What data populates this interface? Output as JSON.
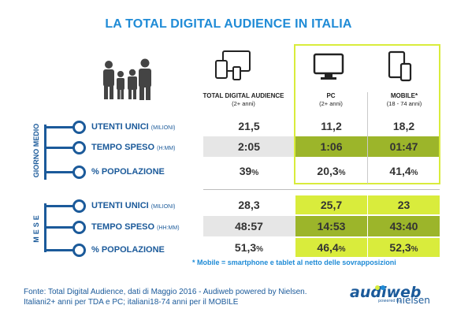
{
  "title": "LA TOTAL DIGITAL AUDIENCE IN ITALIA",
  "columns": [
    {
      "title": "TOTAL DIGITAL AUDIENCE",
      "sub": "(2+ anni)"
    },
    {
      "title": "PC",
      "sub": "(2+ anni)"
    },
    {
      "title": "MOBILE*",
      "sub": "(18 - 74 anni)"
    }
  ],
  "groups": {
    "day": "GIORNO MEDIO",
    "month": "MESE"
  },
  "rows": [
    {
      "label": "UTENTI UNICI",
      "unit": "(MILIONI)",
      "tda": "21,5",
      "pc": "11,2",
      "mobile": "18,2"
    },
    {
      "label": "TEMPO SPESO",
      "unit": "(H:MM)",
      "tda": "2:05",
      "pc": "1:06",
      "mobile": "01:47"
    },
    {
      "label": "% POPOLAZIONE",
      "unit": "",
      "tda": "39",
      "pc": "20,3",
      "mobile": "41,4"
    },
    {
      "label": "UTENTI UNICI",
      "unit": "(MILIONI)",
      "tda": "28,3",
      "pc": "25,7",
      "mobile": "23"
    },
    {
      "label": "TEMPO SPESO",
      "unit": "(HH:MM)",
      "tda": "48:57",
      "pc": "14:53",
      "mobile": "43:40"
    },
    {
      "label": "% POPOLAZIONE",
      "unit": "",
      "tda": "51,3",
      "pc": "46,4",
      "mobile": "52,3"
    }
  ],
  "percent_sign": "%",
  "footnote": "* Mobile = smartphone e tablet al netto delle sovrapposizioni",
  "source_line1": "Fonte: Total Digital Audience, dati di Maggio 2016 - Audiweb powered by Nielsen.",
  "source_line2": "Italiani2+ anni per TDA e PC; italiani18-74 anni per il MOBILE",
  "logo": {
    "audiweb": "audiweb",
    "powered": "powered by",
    "nielsen": "nielsen"
  },
  "colors": {
    "title_blue": "#1f8bd6",
    "dark_blue": "#1b5a9a",
    "lime": "#d9ec3c",
    "olive": "#9cb52a",
    "grey_row": "#e6e6e6"
  }
}
